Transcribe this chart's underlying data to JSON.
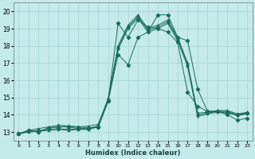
{
  "xlabel": "Humidex (Indice chaleur)",
  "background_color": "#c5eaea",
  "grid_color": "#a8d8d8",
  "line_color": "#1a6b5a",
  "xlim": [
    -0.5,
    23.5
  ],
  "ylim": [
    12.5,
    20.5
  ],
  "xticks": [
    0,
    1,
    2,
    3,
    4,
    5,
    6,
    7,
    8,
    9,
    10,
    11,
    12,
    13,
    14,
    15,
    16,
    17,
    18,
    19,
    20,
    21,
    22,
    23
  ],
  "yticks": [
    13,
    14,
    15,
    16,
    17,
    18,
    19,
    20
  ],
  "series": [
    [
      12.9,
      13.1,
      13.0,
      13.25,
      13.3,
      13.35,
      13.3,
      13.25,
      13.3,
      14.8,
      19.3,
      18.5,
      19.5,
      19.1,
      19.0,
      18.8,
      18.2,
      15.3,
      14.5,
      14.2,
      14.2,
      14.1,
      14.0,
      14.1
    ],
    [
      12.9,
      13.1,
      13.0,
      13.25,
      13.3,
      13.3,
      13.2,
      13.2,
      13.3,
      14.8,
      17.5,
      16.9,
      18.5,
      18.8,
      19.8,
      19.8,
      18.5,
      18.3,
      15.5,
      14.2,
      14.2,
      14.0,
      13.7,
      13.8
    ],
    [
      12.9,
      13.1,
      13.2,
      13.3,
      13.4,
      13.35,
      13.3,
      13.35,
      13.45,
      14.95,
      18.0,
      19.2,
      19.8,
      19.0,
      19.2,
      19.5,
      18.5,
      17.0,
      14.1,
      14.15,
      14.25,
      14.25,
      14.05,
      14.15
    ],
    [
      12.9,
      13.05,
      13.1,
      13.15,
      13.2,
      13.15,
      13.2,
      13.2,
      13.35,
      14.9,
      17.9,
      19.1,
      19.7,
      18.9,
      19.1,
      19.4,
      18.4,
      16.9,
      14.0,
      14.1,
      14.2,
      14.2,
      14.0,
      14.1
    ],
    [
      12.9,
      13.0,
      13.05,
      13.1,
      13.15,
      13.1,
      13.15,
      13.15,
      13.3,
      14.85,
      17.8,
      19.0,
      19.6,
      18.8,
      19.0,
      19.3,
      18.3,
      16.8,
      13.9,
      14.05,
      14.15,
      14.15,
      13.95,
      14.05
    ]
  ],
  "marker_styles": [
    "D",
    "D",
    "^",
    "^",
    "v"
  ],
  "marker_sizes": [
    2.5,
    2.5,
    2.5,
    2.5,
    2.5
  ],
  "marker_filled": [
    true,
    true,
    true,
    true,
    false
  ]
}
